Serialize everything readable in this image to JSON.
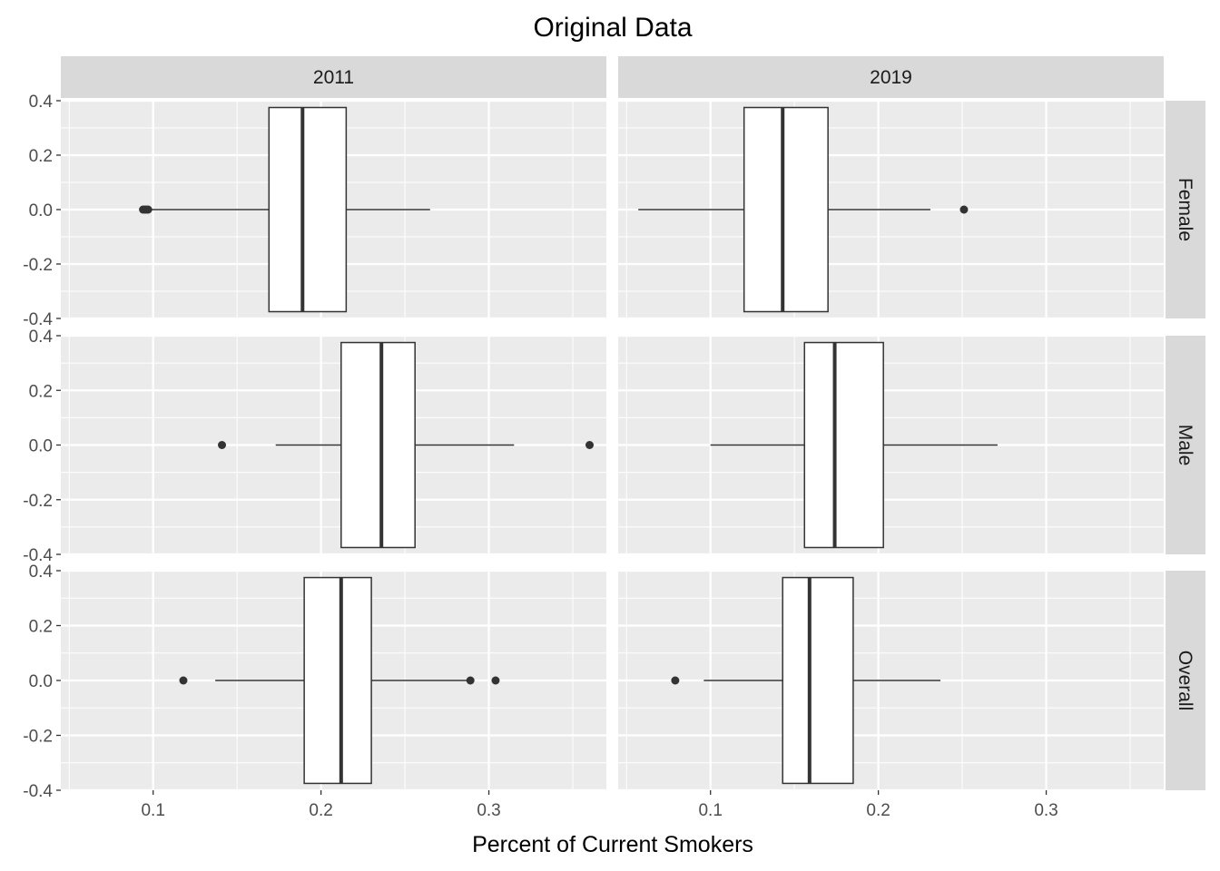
{
  "chart_data": {
    "type": "boxplot",
    "title": "Original Data",
    "xlabel": "Percent of Current Smokers",
    "ylabel": "",
    "xlim": [
      0.045,
      0.37
    ],
    "ylim": [
      -0.4,
      0.4
    ],
    "x_ticks": [
      0.1,
      0.2,
      0.3
    ],
    "x_tick_labels": [
      "0.1",
      "0.2",
      "0.3"
    ],
    "y_ticks": [
      0.4,
      0.2,
      0.0,
      -0.2,
      -0.4
    ],
    "y_tick_labels": [
      "0.4",
      "0.2",
      "0.0",
      "-0.2",
      "-0.4"
    ],
    "columns": [
      "2011",
      "2019"
    ],
    "rows": [
      "Female",
      "Male",
      "Overall"
    ],
    "panel_background": "#EBEBEB",
    "strip_background": "#D9D9D9",
    "grid": true,
    "panels": [
      {
        "column": "2011",
        "row": "Female",
        "whisker_low": 0.096,
        "q1": 0.169,
        "median": 0.189,
        "q3": 0.215,
        "whisker_high": 0.265,
        "outliers": [
          0.094,
          0.095,
          0.096,
          0.097
        ]
      },
      {
        "column": "2019",
        "row": "Female",
        "whisker_low": 0.057,
        "q1": 0.12,
        "median": 0.143,
        "q3": 0.17,
        "whisker_high": 0.231,
        "outliers": [
          0.251
        ]
      },
      {
        "column": "2011",
        "row": "Male",
        "whisker_low": 0.173,
        "q1": 0.212,
        "median": 0.236,
        "q3": 0.256,
        "whisker_high": 0.315,
        "outliers": [
          0.141,
          0.36
        ]
      },
      {
        "column": "2019",
        "row": "Male",
        "whisker_low": 0.1,
        "q1": 0.156,
        "median": 0.174,
        "q3": 0.203,
        "whisker_high": 0.271,
        "outliers": []
      },
      {
        "column": "2011",
        "row": "Overall",
        "whisker_low": 0.137,
        "q1": 0.19,
        "median": 0.212,
        "q3": 0.23,
        "whisker_high": 0.288,
        "outliers": [
          0.118,
          0.289,
          0.304
        ]
      },
      {
        "column": "2019",
        "row": "Overall",
        "whisker_low": 0.096,
        "q1": 0.143,
        "median": 0.159,
        "q3": 0.185,
        "whisker_high": 0.237,
        "outliers": [
          0.079
        ]
      }
    ]
  }
}
